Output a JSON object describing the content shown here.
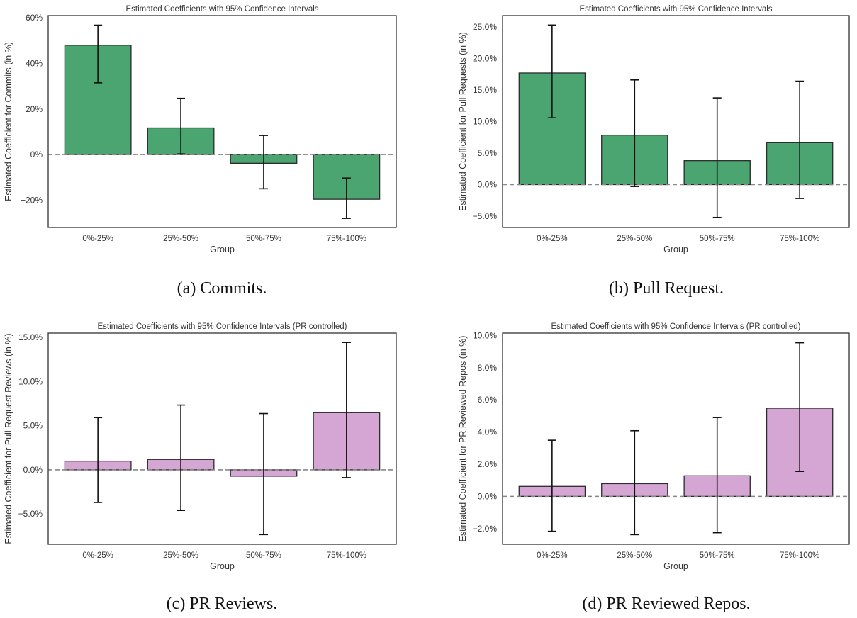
{
  "chart_data": [
    {
      "type": "bar",
      "caption": "(a) Commits.",
      "title": "Estimated Coefficients with 95% Confidence Intervals",
      "xlabel": "Group",
      "ylabel": "Estimated Coefficient for Commits (in %)",
      "categories": [
        "0%-25%",
        "25%-50%",
        "50%-75%",
        "75%-100%"
      ],
      "values": [
        48.0,
        11.7,
        -3.8,
        -19.6
      ],
      "ci_low": [
        31.5,
        0.3,
        -15.0,
        -28.0
      ],
      "ci_high": [
        56.8,
        24.7,
        8.4,
        -10.3
      ],
      "ylim": [
        -32,
        61
      ],
      "yticks": [
        -20,
        0,
        20,
        40,
        60
      ],
      "ytick_labels": [
        "−20%",
        "0%",
        "20%",
        "40%",
        "60%"
      ],
      "bar_color": "#4aa571",
      "reference_line": 0,
      "grid": false
    },
    {
      "type": "bar",
      "caption": "(b) Pull Request.",
      "title": "Estimated Coefficients with 95% Confidence Intervals",
      "xlabel": "Group",
      "ylabel": "Estimated Coefficient for Pull Requests (in %)",
      "categories": [
        "0%-25%",
        "25%-50%",
        "50%-75%",
        "75%-100%"
      ],
      "values": [
        17.7,
        7.85,
        3.8,
        6.65
      ],
      "ci_low": [
        10.6,
        -0.3,
        -5.2,
        -2.2
      ],
      "ci_high": [
        25.3,
        16.6,
        13.75,
        16.4
      ],
      "ylim": [
        -6.8,
        26.8
      ],
      "yticks": [
        -5,
        0,
        5,
        10,
        15,
        20,
        25
      ],
      "ytick_labels": [
        "−5.0%",
        "0.0%",
        "5.0%",
        "10.0%",
        "15.0%",
        "20.0%",
        "25.0%"
      ],
      "bar_color": "#4aa571",
      "reference_line": 0,
      "grid": false
    },
    {
      "type": "bar",
      "caption": "(c) PR Reviews.",
      "title": "Estimated Coefficients with 95% Confidence Intervals (PR controlled)",
      "xlabel": "Group",
      "ylabel": "Estimated Coefficient for Pull Request Reviews (in %)",
      "categories": [
        "0%-25%",
        "25%-50%",
        "50%-75%",
        "75%-100%"
      ],
      "values": [
        0.99,
        1.18,
        -0.72,
        6.48
      ],
      "ci_low": [
        -3.7,
        -4.6,
        -7.34,
        -0.88
      ],
      "ci_high": [
        5.92,
        7.34,
        6.38,
        14.44
      ],
      "ylim": [
        -8.44,
        15.5
      ],
      "yticks": [
        -5,
        0,
        5,
        10,
        15
      ],
      "ytick_labels": [
        "−5.0%",
        "0.0%",
        "5.0%",
        "10.0%",
        "15.0%"
      ],
      "bar_color": "#d5a6d4",
      "reference_line": 0,
      "grid": false
    },
    {
      "type": "bar",
      "caption": "(d) PR Reviewed Repos.",
      "title": "Estimated Coefficients with 95% Confidence Intervals (PR controlled)",
      "xlabel": "Group",
      "ylabel": "Estimated Coefficient for PR Reviewed Repos (in %)",
      "categories": [
        "0%-25%",
        "25%-50%",
        "50%-75%",
        "75%-100%"
      ],
      "values": [
        0.62,
        0.79,
        1.28,
        5.48
      ],
      "ci_low": [
        -2.17,
        -2.38,
        -2.26,
        1.55
      ],
      "ci_high": [
        3.49,
        4.08,
        4.9,
        9.55
      ],
      "ylim": [
        -2.98,
        10.15
      ],
      "yticks": [
        -2,
        0,
        2,
        4,
        6,
        8,
        10
      ],
      "ytick_labels": [
        "−2.0%",
        "0.0%",
        "2.0%",
        "4.0%",
        "6.0%",
        "8.0%",
        "10.0%"
      ],
      "bar_color": "#d5a6d4",
      "reference_line": 0,
      "grid": false
    }
  ]
}
